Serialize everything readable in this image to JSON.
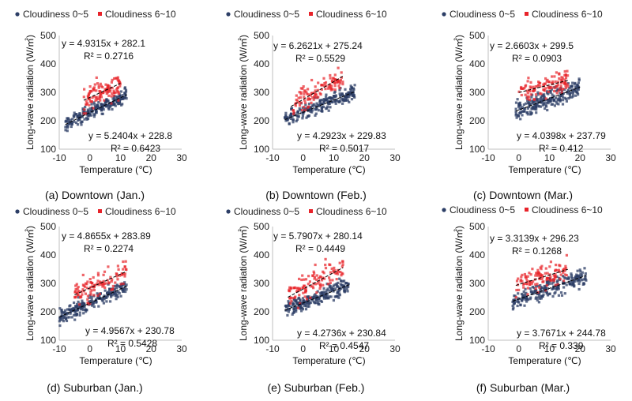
{
  "legend": {
    "low_label": "Cloudiness 0~5",
    "high_label": "Cloudiness 6~10"
  },
  "colors": {
    "low": "#2c3e66",
    "high": "#e8232a",
    "trend": "#000000",
    "axis": "#bfbfbf"
  },
  "chart_data": [
    {
      "type": "scatter",
      "caption": "(a) Downtown (Jan.)",
      "xlabel": "Temperature (℃)",
      "ylabel": "Long-wave radiation (W/㎡)",
      "xlim": [
        -10,
        30
      ],
      "ylim": [
        100,
        500
      ],
      "xticks": [
        "-10",
        "0",
        "10",
        "20",
        "30"
      ],
      "yticks": [
        "100",
        "200",
        "300",
        "400",
        "500"
      ],
      "series": [
        {
          "name": "Cloudiness 0~5",
          "slope": 5.2404,
          "intercept": 228.8,
          "x_range": [
            -8,
            12
          ],
          "equation": "y = 5.2404x + 228.8",
          "r2": "R² = 0.6423",
          "noise": 12
        },
        {
          "name": "Cloudiness 6~10",
          "slope": 4.9315,
          "intercept": 282.1,
          "x_range": [
            -2,
            10
          ],
          "equation": "y = 4.9315x + 282.1",
          "r2": "R² = 0.2716",
          "noise": 22
        }
      ]
    },
    {
      "type": "scatter",
      "caption": "(b) Downtown (Feb.)",
      "xlabel": "Temperature (℃)",
      "ylabel": "Long-wave radiation (W/㎡)",
      "xlim": [
        -10,
        30
      ],
      "ylim": [
        100,
        500
      ],
      "xticks": [
        "-10",
        "0",
        "10",
        "20",
        "30"
      ],
      "yticks": [
        "100",
        "200",
        "300",
        "400",
        "500"
      ],
      "series": [
        {
          "name": "Cloudiness 0~5",
          "slope": 4.2923,
          "intercept": 229.83,
          "x_range": [
            -6,
            17
          ],
          "equation": "y = 4.2923x + 229.83",
          "r2": "R² = 0.5017",
          "noise": 14
        },
        {
          "name": "Cloudiness 6~10",
          "slope": 6.2621,
          "intercept": 275.24,
          "x_range": [
            -4,
            13
          ],
          "equation": "y = 6.2621x + 275.24",
          "r2": "R² = 0.5529",
          "noise": 20
        }
      ]
    },
    {
      "type": "scatter",
      "caption": "(c) Downtown (Mar.)",
      "xlabel": "Temperature (℃)",
      "ylabel": "Long-wave radiation (W/㎡)",
      "xlim": [
        -10,
        30
      ],
      "ylim": [
        100,
        500
      ],
      "xticks": [
        "-10",
        "0",
        "10",
        "20",
        "30"
      ],
      "yticks": [
        "100",
        "200",
        "300",
        "400",
        "500"
      ],
      "series": [
        {
          "name": "Cloudiness 0~5",
          "slope": 4.0398,
          "intercept": 237.79,
          "x_range": [
            -1,
            20
          ],
          "equation": "y = 4.0398x + 237.79",
          "r2": "R² = 0.412",
          "noise": 16
        },
        {
          "name": "Cloudiness 6~10",
          "slope": 2.6603,
          "intercept": 299.5,
          "x_range": [
            0,
            16
          ],
          "equation": "y = 2.6603x + 299.5",
          "r2": "R² = 0.0903",
          "noise": 22
        }
      ]
    },
    {
      "type": "scatter",
      "caption": "(d) Suburban (Jan.)",
      "xlabel": "Temperature (℃)",
      "ylabel": "Long-wave radiation (W/㎡)",
      "xlim": [
        -10,
        30
      ],
      "ylim": [
        100,
        500
      ],
      "xticks": [
        "-10",
        "0",
        "10",
        "20",
        "30"
      ],
      "yticks": [
        "100",
        "200",
        "300",
        "400",
        "500"
      ],
      "series": [
        {
          "name": "Cloudiness 0~5",
          "slope": 4.9567,
          "intercept": 230.78,
          "x_range": [
            -10,
            12
          ],
          "equation": "y = 4.9567x + 230.78",
          "r2": "R² = 0.5428",
          "noise": 13
        },
        {
          "name": "Cloudiness 6~10",
          "slope": 4.8655,
          "intercept": 283.89,
          "x_range": [
            -5,
            12
          ],
          "equation": "y = 4.8655x + 283.89",
          "r2": "R² = 0.2274",
          "noise": 22
        }
      ]
    },
    {
      "type": "scatter",
      "caption": "(e) Suburban (Feb.)",
      "xlabel": "Temperature (℃)",
      "ylabel": "Long-wave radiation (W/㎡)",
      "xlim": [
        -10,
        30
      ],
      "ylim": [
        100,
        500
      ],
      "xticks": [
        "-10",
        "0",
        "10",
        "20",
        "30"
      ],
      "yticks": [
        "100",
        "200",
        "300",
        "400",
        "500"
      ],
      "series": [
        {
          "name": "Cloudiness 0~5",
          "slope": 4.2736,
          "intercept": 230.84,
          "x_range": [
            -6,
            15
          ],
          "equation": "y = 4.2736x + 230.84",
          "r2": "R² = 0.4547",
          "noise": 14
        },
        {
          "name": "Cloudiness 6~10",
          "slope": 5.7907,
          "intercept": 280.14,
          "x_range": [
            -5,
            13
          ],
          "equation": "y = 5.7907x + 280.14",
          "r2": "R² = 0.4449",
          "noise": 22
        }
      ]
    },
    {
      "type": "scatter",
      "caption": "(f) Suburban (Mar.)",
      "xlabel": "Temperature (℃)",
      "ylabel": "Long-wave radiation (W/㎡)",
      "xlim": [
        -10,
        30
      ],
      "ylim": [
        100,
        500
      ],
      "xticks": [
        "-10",
        "0",
        "10",
        "20",
        "30"
      ],
      "yticks": [
        "100",
        "200",
        "300",
        "400",
        "500"
      ],
      "series": [
        {
          "name": "Cloudiness 0~5",
          "slope": 3.7671,
          "intercept": 244.78,
          "x_range": [
            -2,
            22
          ],
          "equation": "y = 3.7671x + 244.78",
          "r2": "R² = 0.339",
          "noise": 16
        },
        {
          "name": "Cloudiness 6~10",
          "slope": 3.3139,
          "intercept": 296.23,
          "x_range": [
            -1,
            16
          ],
          "equation": "y = 3.3139x + 296.23",
          "r2": "R² = 0.1268",
          "noise": 22
        }
      ]
    }
  ]
}
